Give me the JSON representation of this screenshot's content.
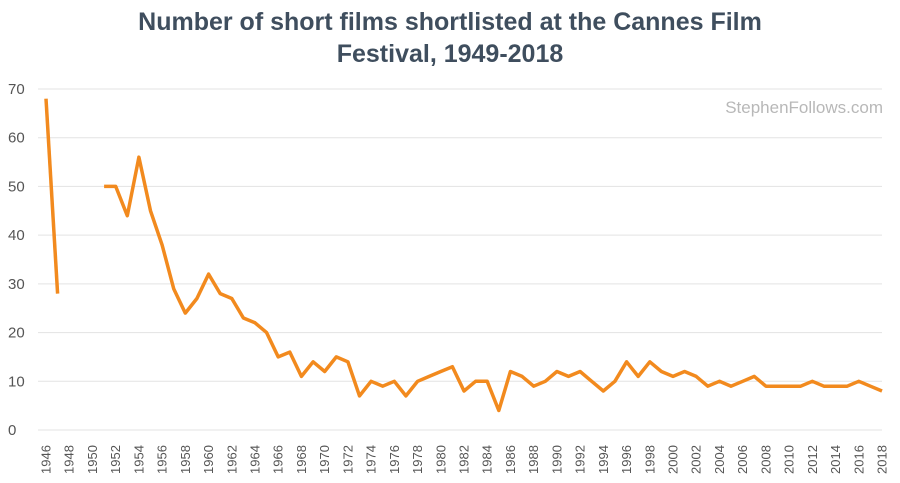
{
  "chart_data": {
    "type": "line",
    "title_lines": [
      "Number of short films shortlisted at the Cannes Film",
      "Festival, 1949-2018"
    ],
    "title": "Number of short films shortlisted at the Cannes Film Festival, 1949-2018",
    "xlabel": "",
    "ylabel": "",
    "watermark": "StephenFollows.com",
    "xlim": [
      1946,
      2018
    ],
    "ylim": [
      0,
      70
    ],
    "y_ticks": [
      0,
      10,
      20,
      30,
      40,
      50,
      60,
      70
    ],
    "x_ticks": [
      1946,
      1948,
      1950,
      1952,
      1954,
      1956,
      1958,
      1960,
      1962,
      1964,
      1966,
      1968,
      1970,
      1972,
      1974,
      1976,
      1978,
      1980,
      1982,
      1984,
      1986,
      1988,
      1990,
      1992,
      1994,
      1996,
      1998,
      2000,
      2002,
      2004,
      2006,
      2008,
      2010,
      2012,
      2014,
      2016,
      2018
    ],
    "grid": true,
    "line_color": "#f28a1e",
    "series": [
      {
        "segments": [
          [
            [
              1946,
              68
            ],
            [
              1947,
              28
            ]
          ],
          [
            [
              1951,
              50
            ],
            [
              1952,
              50
            ],
            [
              1953,
              44
            ],
            [
              1954,
              56
            ],
            [
              1955,
              45
            ],
            [
              1956,
              38
            ],
            [
              1957,
              29
            ],
            [
              1958,
              24
            ],
            [
              1959,
              27
            ],
            [
              1960,
              32
            ],
            [
              1961,
              28
            ],
            [
              1962,
              27
            ],
            [
              1963,
              23
            ],
            [
              1964,
              22
            ],
            [
              1965,
              20
            ],
            [
              1966,
              15
            ],
            [
              1967,
              16
            ],
            [
              1968,
              11
            ],
            [
              1969,
              14
            ],
            [
              1970,
              12
            ],
            [
              1971,
              15
            ],
            [
              1972,
              14
            ],
            [
              1973,
              7
            ],
            [
              1974,
              10
            ],
            [
              1975,
              9
            ],
            [
              1976,
              10
            ],
            [
              1977,
              7
            ],
            [
              1978,
              10
            ],
            [
              1979,
              11
            ],
            [
              1980,
              12
            ],
            [
              1981,
              13
            ],
            [
              1982,
              8
            ],
            [
              1983,
              10
            ],
            [
              1984,
              10
            ],
            [
              1985,
              4
            ],
            [
              1986,
              12
            ],
            [
              1987,
              11
            ],
            [
              1988,
              9
            ],
            [
              1989,
              10
            ],
            [
              1990,
              12
            ],
            [
              1991,
              11
            ],
            [
              1992,
              12
            ],
            [
              1993,
              10
            ],
            [
              1994,
              8
            ],
            [
              1995,
              10
            ],
            [
              1996,
              14
            ],
            [
              1997,
              11
            ],
            [
              1998,
              14
            ],
            [
              1999,
              12
            ],
            [
              2000,
              11
            ],
            [
              2001,
              12
            ],
            [
              2002,
              11
            ],
            [
              2003,
              9
            ],
            [
              2004,
              10
            ],
            [
              2005,
              9
            ],
            [
              2006,
              10
            ],
            [
              2007,
              11
            ],
            [
              2008,
              9
            ],
            [
              2009,
              9
            ],
            [
              2010,
              9
            ],
            [
              2011,
              9
            ],
            [
              2012,
              10
            ],
            [
              2013,
              9
            ],
            [
              2014,
              9
            ],
            [
              2015,
              9
            ],
            [
              2016,
              10
            ],
            [
              2017,
              9
            ],
            [
              2018,
              8
            ]
          ]
        ]
      }
    ]
  }
}
